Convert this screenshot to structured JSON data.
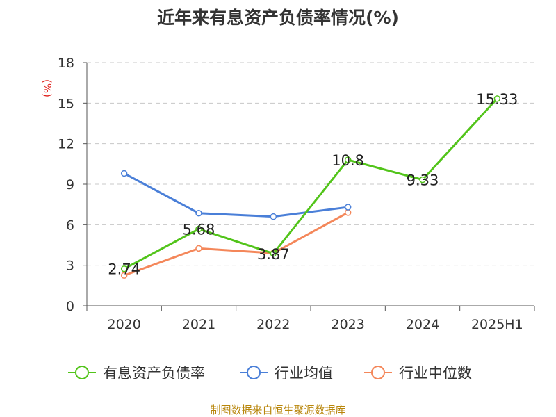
{
  "chart_data": {
    "type": "line",
    "title": "近年来有息资产负债率情况(%)",
    "ylabel": "(%)",
    "xlabel": "",
    "ylim": [
      0,
      18
    ],
    "yticks": [
      0,
      3,
      6,
      9,
      12,
      15,
      18
    ],
    "categories": [
      "2020",
      "2021",
      "2022",
      "2023",
      "2024",
      "2025H1"
    ],
    "grid": true,
    "legend_position": "bottom",
    "series": [
      {
        "name": "有息资产负债率",
        "color": "#52c41a",
        "values": [
          2.74,
          5.68,
          3.87,
          10.8,
          9.33,
          15.33
        ],
        "labels": [
          "2.74",
          "5.68",
          "3.87",
          "10.8",
          "9.33",
          "15.33"
        ]
      },
      {
        "name": "行业均值",
        "color": "#4a7fd8",
        "values": [
          9.8,
          6.85,
          6.6,
          7.3,
          null,
          null
        ]
      },
      {
        "name": "行业中位数",
        "color": "#f4875a",
        "values": [
          2.25,
          4.25,
          3.9,
          6.9,
          null,
          null
        ]
      }
    ]
  },
  "source": "制图数据来自恒生聚源数据库"
}
